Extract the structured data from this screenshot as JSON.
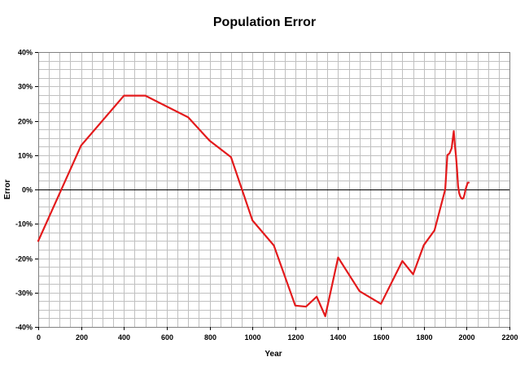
{
  "chart_data": {
    "type": "line",
    "title": "Population Error",
    "xlabel": "Year",
    "ylabel": "Error",
    "xlim": [
      0,
      2200
    ],
    "ylim": [
      -40,
      40
    ],
    "x_ticks": [
      0,
      200,
      400,
      600,
      800,
      1000,
      1200,
      1400,
      1600,
      1800,
      2000,
      2200
    ],
    "y_ticks": [
      -40,
      -30,
      -20,
      -10,
      0,
      10,
      20,
      30,
      40
    ],
    "x_minor_step": 50,
    "y_minor_step": 2.5,
    "y_unit": "%",
    "grid": true,
    "legend": "none",
    "colors": {
      "series": "#e31a1c",
      "grid": "#c0c0c0",
      "zero_line": "#000000"
    },
    "series": [
      {
        "color": "#e31a1c",
        "x": [
          0,
          200,
          400,
          500,
          700,
          800,
          900,
          1000,
          1100,
          1200,
          1250,
          1300,
          1340,
          1400,
          1500,
          1600,
          1700,
          1750,
          1800,
          1850,
          1900,
          1910,
          1920,
          1930,
          1940,
          1945,
          1950,
          1955,
          1960,
          1965,
          1970,
          1975,
          1980,
          1985,
          1990,
          1995,
          2000,
          2005,
          2010
        ],
        "y": [
          -15,
          12.8,
          27.3,
          27.3,
          21,
          14.2,
          9.4,
          -9,
          -16.3,
          -33.8,
          -34.1,
          -31.2,
          -36.9,
          -19.8,
          -29.6,
          -33.3,
          -20.8,
          -24.7,
          -16.2,
          -11.9,
          0,
          10,
          10.5,
          12,
          17,
          13,
          10,
          6,
          1,
          -1,
          -2,
          -2.5,
          -2.7,
          -2.5,
          -1.5,
          0,
          1,
          2,
          2
        ]
      }
    ]
  }
}
